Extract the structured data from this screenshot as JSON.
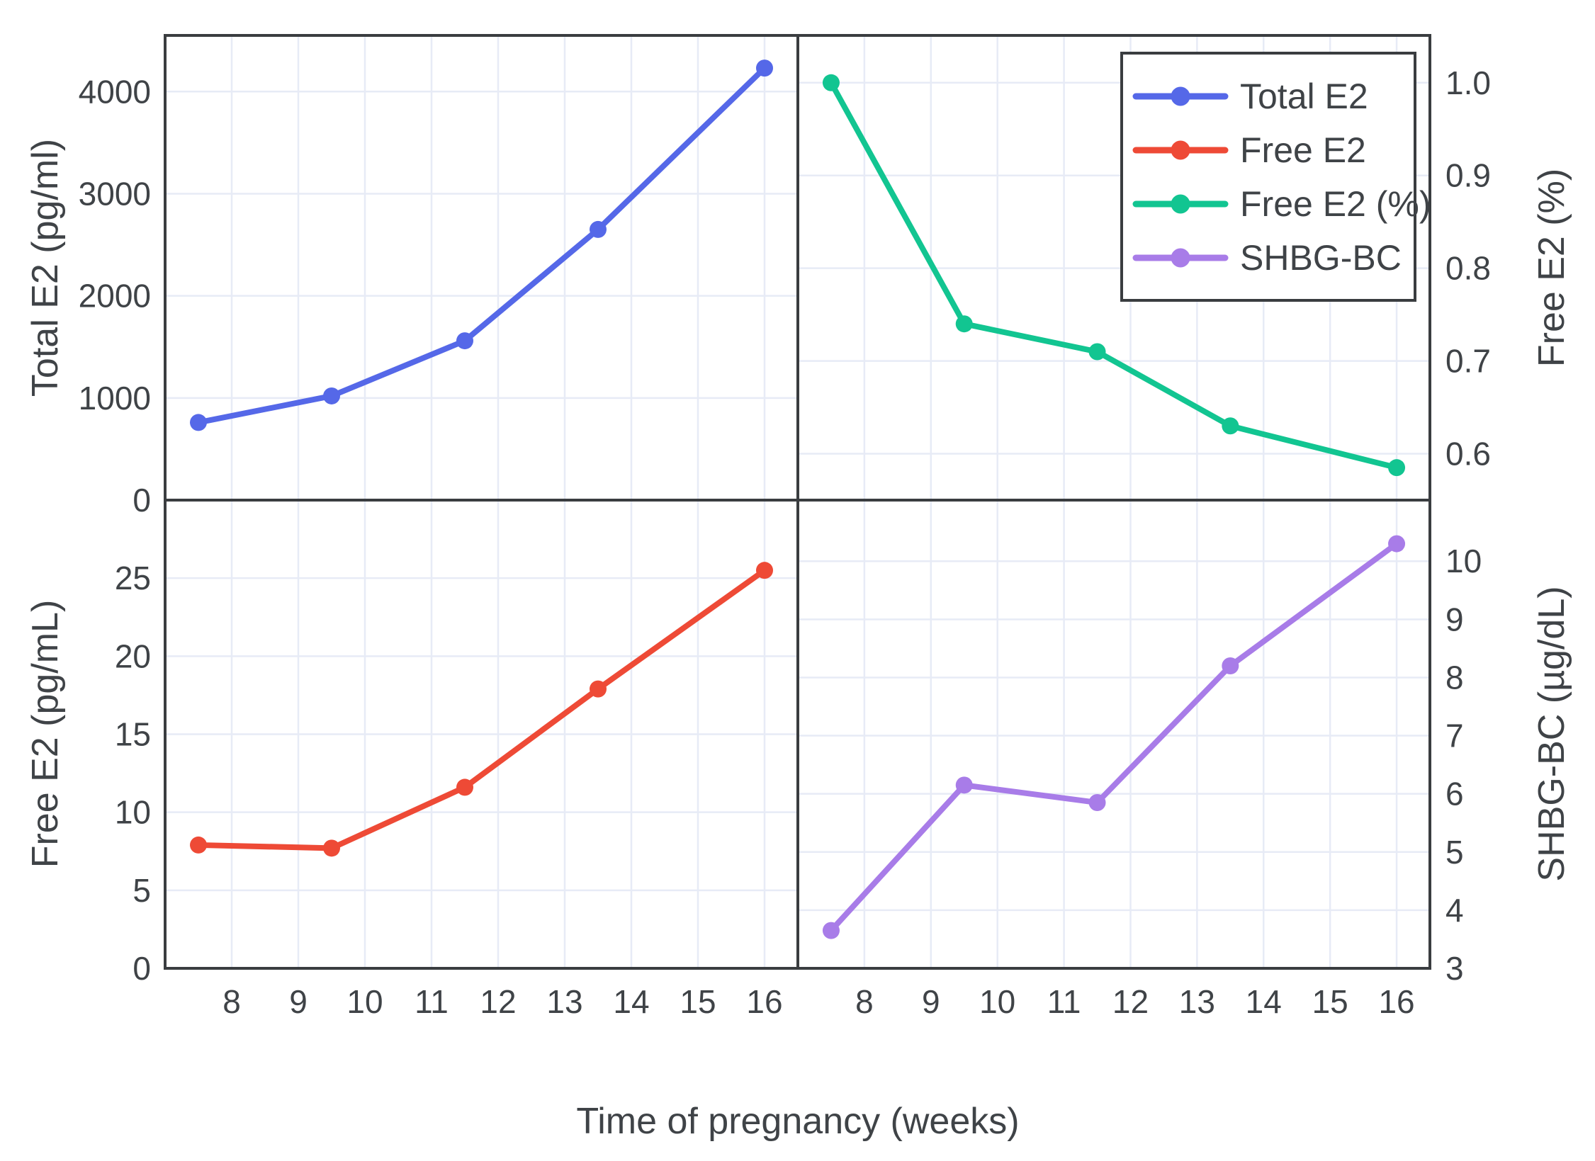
{
  "figure": {
    "xlabel": "Time of pregnancy (weeks)",
    "background": "#ffffff",
    "grid_color": "#e7ebf6",
    "axis_color": "#3a3d40",
    "text_color": "#3f4347",
    "x_ticks": [
      "8",
      "9",
      "10",
      "11",
      "12",
      "13",
      "14",
      "15",
      "16"
    ],
    "x_tick_values": [
      8,
      9,
      10,
      11,
      12,
      13,
      14,
      15,
      16
    ],
    "legend": {
      "position": "top-right-panel",
      "items": [
        {
          "label": "Total E2",
          "color": "#5568e8"
        },
        {
          "label": "Free E2",
          "color": "#ee4a36"
        },
        {
          "label": "Free E2 (%)",
          "color": "#12c591"
        },
        {
          "label": "SHBG-BC",
          "color": "#a87ce8"
        }
      ]
    }
  },
  "chart_data": [
    {
      "type": "line",
      "name": "Total E2",
      "panel": "top-left",
      "ylabel": "Total E2 (pg/ml)",
      "axis_side": "left",
      "color": "#5568e8",
      "x": [
        7.5,
        9.5,
        11.5,
        13.5,
        16
      ],
      "y": [
        760,
        1020,
        1560,
        2650,
        4230
      ],
      "xlim": [
        7.0,
        16.5
      ],
      "ylim": [
        0,
        4550
      ],
      "yticks": [
        0,
        1000,
        2000,
        3000,
        4000
      ],
      "ytick_labels": [
        "0",
        "1000",
        "2000",
        "3000",
        "4000"
      ],
      "grid": true
    },
    {
      "type": "line",
      "name": "Free E2 (%)",
      "panel": "top-right",
      "ylabel": "Free E2 (%)",
      "axis_side": "right",
      "color": "#12c591",
      "x": [
        7.5,
        9.5,
        11.5,
        13.5,
        16
      ],
      "y": [
        1.0,
        0.74,
        0.71,
        0.63,
        0.585
      ],
      "xlim": [
        7.0,
        16.5
      ],
      "ylim": [
        0.55,
        1.051
      ],
      "yticks": [
        0.6,
        0.7,
        0.8,
        0.9,
        1.0
      ],
      "ytick_labels": [
        "0.6",
        "0.7",
        "0.8",
        "0.9",
        "1.0"
      ],
      "grid": true
    },
    {
      "type": "line",
      "name": "Free E2",
      "panel": "bottom-left",
      "ylabel": "Free E2 (pg/mL)",
      "axis_side": "left",
      "color": "#ee4a36",
      "x": [
        7.5,
        9.5,
        11.5,
        13.5,
        16
      ],
      "y": [
        7.9,
        7.7,
        11.6,
        17.9,
        25.5
      ],
      "xlim": [
        7.0,
        16.5
      ],
      "ylim": [
        0,
        30
      ],
      "yticks": [
        0,
        5,
        10,
        15,
        20,
        25
      ],
      "ytick_labels": [
        "0",
        "5",
        "10",
        "15",
        "20",
        "25"
      ],
      "grid": true
    },
    {
      "type": "line",
      "name": "SHBG-BC",
      "panel": "bottom-right",
      "ylabel": "SHBG-BC (µg/dL)",
      "axis_side": "right",
      "color": "#a87ce8",
      "x": [
        7.5,
        9.5,
        11.5,
        13.5,
        16
      ],
      "y": [
        3.65,
        6.15,
        5.85,
        8.2,
        10.3
      ],
      "xlim": [
        7.0,
        16.5
      ],
      "ylim": [
        3,
        11.05
      ],
      "yticks": [
        3,
        4,
        5,
        6,
        7,
        8,
        9,
        10
      ],
      "ytick_labels": [
        "3",
        "4",
        "5",
        "6",
        "7",
        "8",
        "9",
        "10"
      ],
      "grid": true
    }
  ]
}
